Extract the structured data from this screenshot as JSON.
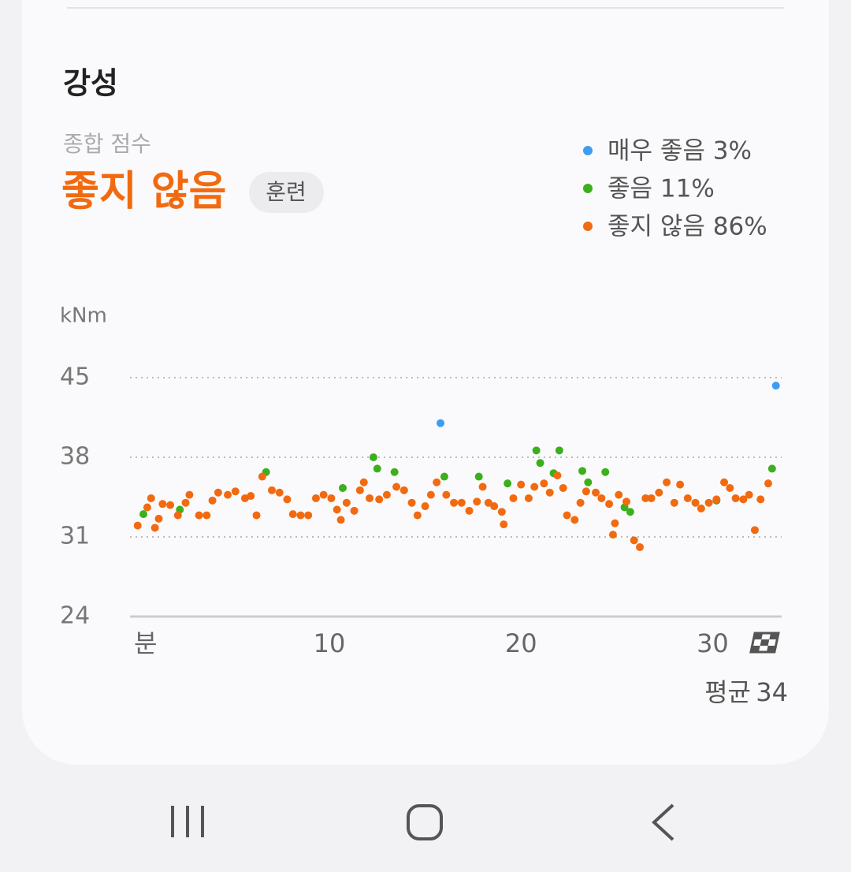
{
  "section_title": "강성",
  "score_label": "종합 점수",
  "score_value": "좋지 않음",
  "badge": "훈련",
  "chart_data": {
    "type": "scatter",
    "y_unit": "kNm",
    "xlim": [
      -0.4,
      33.6
    ],
    "xticks": [
      {
        "value": 0,
        "label": "분"
      },
      10,
      20,
      30
    ],
    "ylim": [
      24,
      45
    ],
    "yticks": [
      24,
      31,
      38,
      45
    ],
    "grid": true,
    "average": {
      "label": "평균",
      "value": 34
    },
    "series": [
      {
        "name": "매우 좋음 3%",
        "color": "#3d9df0",
        "x": [
          15.8,
          33.3
        ],
        "values": [
          41.0,
          44.3
        ]
      },
      {
        "name": "좋음 11%",
        "color": "#3bb01c",
        "x": [
          0.3,
          2.2,
          6.7,
          10.7,
          12.3,
          12.5,
          13.4,
          16.0,
          17.8,
          19.3,
          20.8,
          21.0,
          21.7,
          22.0,
          23.2,
          23.5,
          24.4,
          25.4,
          25.7,
          30.2,
          33.1
        ],
        "values": [
          33.0,
          33.4,
          36.7,
          35.3,
          38.0,
          37.0,
          36.7,
          36.3,
          36.3,
          35.7,
          38.6,
          37.5,
          36.6,
          38.6,
          36.8,
          35.8,
          36.7,
          33.6,
          33.2,
          34.2,
          37.0
        ]
      },
      {
        "name": "좋지 않음 86%",
        "color": "#f26a10",
        "x": [
          0.0,
          0.5,
          0.7,
          0.9,
          1.1,
          1.3,
          1.7,
          2.1,
          2.5,
          2.7,
          3.2,
          3.6,
          3.9,
          4.2,
          4.7,
          5.1,
          5.6,
          5.9,
          6.2,
          6.5,
          7.0,
          7.4,
          7.8,
          8.1,
          8.5,
          8.9,
          9.3,
          9.7,
          10.1,
          10.4,
          10.6,
          10.9,
          11.3,
          11.6,
          11.8,
          12.1,
          12.6,
          13.0,
          13.5,
          13.9,
          14.3,
          14.6,
          15.0,
          15.3,
          15.6,
          16.1,
          16.5,
          16.9,
          17.3,
          17.7,
          18.0,
          18.3,
          18.6,
          19.0,
          19.1,
          19.6,
          20.0,
          20.4,
          20.7,
          21.2,
          21.5,
          21.9,
          22.2,
          22.4,
          22.8,
          23.1,
          23.4,
          23.9,
          24.2,
          24.6,
          24.8,
          24.9,
          25.1,
          25.5,
          25.9,
          26.2,
          26.5,
          26.8,
          27.2,
          27.6,
          28.0,
          28.3,
          28.7,
          29.1,
          29.4,
          29.8,
          30.2,
          30.6,
          30.9,
          31.2,
          31.6,
          31.9,
          32.2,
          32.5,
          32.9
        ],
        "values": [
          32.0,
          33.6,
          34.4,
          31.8,
          32.6,
          33.9,
          33.8,
          32.9,
          34.0,
          34.7,
          32.9,
          32.9,
          34.2,
          34.9,
          34.7,
          35.0,
          34.4,
          34.6,
          32.9,
          36.3,
          35.1,
          34.9,
          34.3,
          33.0,
          32.9,
          32.9,
          34.4,
          34.7,
          34.4,
          33.4,
          32.5,
          34.0,
          33.3,
          35.1,
          35.8,
          34.4,
          34.3,
          34.7,
          35.4,
          35.1,
          34.0,
          32.9,
          33.7,
          34.7,
          35.8,
          34.7,
          34.0,
          34.0,
          33.3,
          34.1,
          35.4,
          34.0,
          33.7,
          33.2,
          32.1,
          34.4,
          35.6,
          34.4,
          35.4,
          35.7,
          34.9,
          36.4,
          35.3,
          32.9,
          32.5,
          34.0,
          35.0,
          34.9,
          34.4,
          33.9,
          31.2,
          32.2,
          34.7,
          34.1,
          30.7,
          30.1,
          34.4,
          34.4,
          34.9,
          35.8,
          34.0,
          35.6,
          34.4,
          34.0,
          33.5,
          34.0,
          34.3,
          35.8,
          35.3,
          34.4,
          34.3,
          34.7,
          31.6,
          34.3,
          35.7
        ]
      }
    ]
  }
}
